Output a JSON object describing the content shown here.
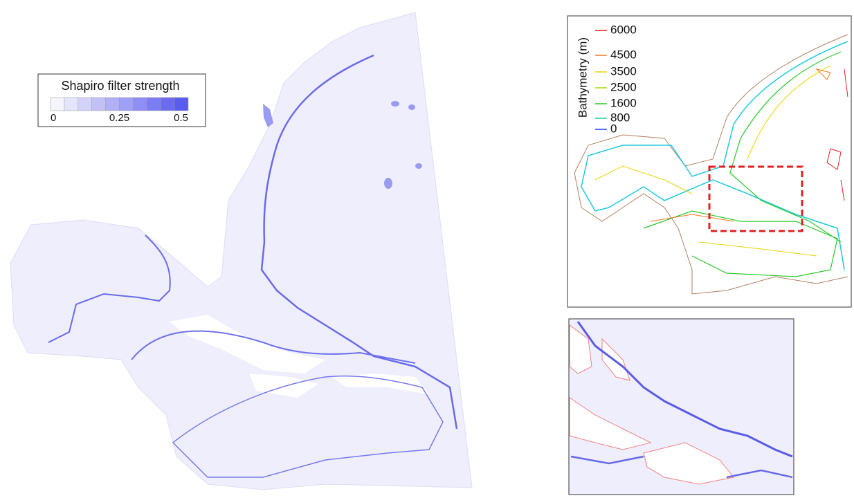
{
  "filter_legend": {
    "title": "Shapiro filter strength",
    "ticks": [
      0,
      0.25,
      0.5
    ]
  },
  "bathymetry_legend": {
    "title": "Bathymetry (m)",
    "levels": [
      {
        "label": 6000,
        "color": "#e02020"
      },
      {
        "label": 4500,
        "color": "#f07828"
      },
      {
        "label": 3500,
        "color": "#e8d400"
      },
      {
        "label": 2500,
        "color": "#a8d810"
      },
      {
        "label": 1600,
        "color": "#28c828"
      },
      {
        "label": 800,
        "color": "#20c8a8"
      },
      {
        "label": 0,
        "color": "#2040ff"
      }
    ]
  }
}
